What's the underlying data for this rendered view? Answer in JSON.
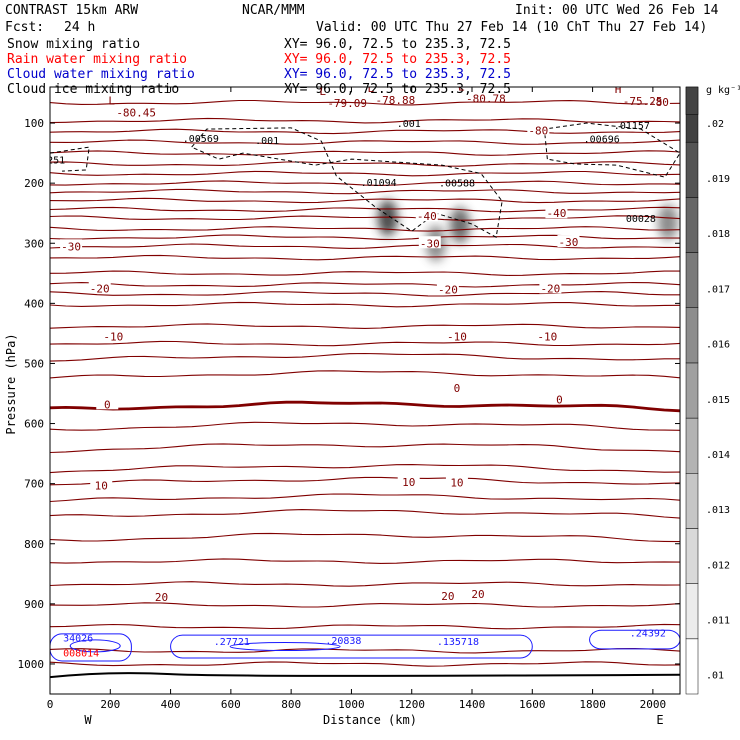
{
  "header": {
    "model": "CONTRAST 15km ARW",
    "org": "NCAR/MMM",
    "init": "Init: 00 UTC Wed 26 Feb 14",
    "fcst_label": "Fcst:",
    "fcst_value": "24 h",
    "valid": "Valid: 00 UTC Thu 27 Feb 14 (10 ChT Thu 27 Feb 14)"
  },
  "legend": [
    {
      "name": "Snow mixing ratio",
      "xy": "XY=  96.0, 72.5 to 235.3, 72.5",
      "color": "#000000"
    },
    {
      "name": "Rain water mixing ratio",
      "xy": "XY=  96.0, 72.5 to 235.3, 72.5",
      "color": "#ff0000"
    },
    {
      "name": "Cloud water mixing ratio",
      "xy": "XY=  96.0, 72.5 to 235.3, 72.5",
      "color": "#0000cc"
    },
    {
      "name": "Cloud ice mixing ratio",
      "xy": "XY=  96.0, 72.5 to 235.3, 72.5",
      "color": "#000000"
    }
  ],
  "chart_data": {
    "type": "cross-section",
    "xlabel": "Distance (km)",
    "ylabel": "Pressure (hPa)",
    "x_ticks": [
      "0",
      "200",
      "400",
      "600",
      "800",
      "1000",
      "1200",
      "1400",
      "1600",
      "1800",
      "2000"
    ],
    "x_range": [
      0,
      2090
    ],
    "y_ticks": [
      "100",
      "200",
      "300",
      "400",
      "500",
      "600",
      "700",
      "800",
      "900",
      "1000"
    ],
    "y_range": [
      40,
      1050
    ],
    "endpoints": {
      "left": "W",
      "right": "E"
    },
    "colorbar": {
      "unit": "g kg⁻¹",
      "levels": [
        ".01",
        ".011",
        ".012",
        ".013",
        ".014",
        ".015",
        ".016",
        ".017",
        ".018",
        ".019",
        ".02"
      ]
    },
    "temperature_isotherms": [
      {
        "label": "-80",
        "x": 1620,
        "p": 112
      },
      {
        "label": "-80",
        "x": 2020,
        "p": 65
      },
      {
        "label": "-40",
        "x": 1680,
        "p": 250
      },
      {
        "label": "-40",
        "x": 1250,
        "p": 255
      },
      {
        "label": "-30",
        "x": 70,
        "p": 305
      },
      {
        "label": "-30",
        "x": 1260,
        "p": 300
      },
      {
        "label": "-30",
        "x": 1720,
        "p": 298
      },
      {
        "label": "-20",
        "x": 165,
        "p": 375
      },
      {
        "label": "-20",
        "x": 1320,
        "p": 377
      },
      {
        "label": "-20",
        "x": 1660,
        "p": 375
      },
      {
        "label": "-10",
        "x": 210,
        "p": 455
      },
      {
        "label": "-10",
        "x": 1350,
        "p": 455
      },
      {
        "label": "-10",
        "x": 1650,
        "p": 455
      },
      {
        "label": "0",
        "x": 190,
        "p": 568
      },
      {
        "label": "0",
        "x": 1350,
        "p": 541
      },
      {
        "label": "0",
        "x": 1690,
        "p": 560
      },
      {
        "label": "10",
        "x": 170,
        "p": 703
      },
      {
        "label": "10",
        "x": 1190,
        "p": 697
      },
      {
        "label": "10",
        "x": 1350,
        "p": 698
      },
      {
        "label": "20",
        "x": 370,
        "p": 889
      },
      {
        "label": "20",
        "x": 1320,
        "p": 887
      },
      {
        "label": "20",
        "x": 1420,
        "p": 884
      }
    ],
    "extrema_labels": [
      {
        "kind": "L",
        "value": "-80.45",
        "x": 220,
        "p": 79
      },
      {
        "kind": "L",
        "value": "-79.09",
        "x": 920,
        "p": 63
      },
      {
        "kind": "L",
        "value": "-78.88",
        "x": 1080,
        "p": 58
      },
      {
        "kind": "L",
        "value": "-80.78",
        "x": 1380,
        "p": 56
      },
      {
        "kind": "H",
        "value": "-75.25",
        "x": 1900,
        "p": 60
      }
    ],
    "ice_maxima": [
      {
        "value": ".00569",
        "x": 520,
        "p": 125
      },
      {
        "value": ".001",
        "x": 760,
        "p": 128
      },
      {
        "value": ".001",
        "x": 1230,
        "p": 100
      },
      {
        "value": ".00696",
        "x": 1850,
        "p": 126
      },
      {
        "value": ".01157",
        "x": 1950,
        "p": 103
      },
      {
        "value": ".01094",
        "x": 1110,
        "p": 198
      },
      {
        "value": ".00588",
        "x": 1370,
        "p": 199
      },
      {
        "value": "00028",
        "x": 1990,
        "p": 258
      },
      {
        "value": "0251",
        "x": 50,
        "p": 161
      }
    ],
    "cloud_water_maxima": [
      {
        "value": "34026",
        "x": 50,
        "p": 966
      },
      {
        "value": ".27721",
        "x": 550,
        "p": 972
      },
      {
        "value": ".20838",
        "x": 920,
        "p": 970
      },
      {
        "value": ".135718",
        "x": 1290,
        "p": 972
      },
      {
        "value": ".24392",
        "x": 1930,
        "p": 958
      }
    ],
    "rain_labels": [
      {
        "value": "008014",
        "x": 50,
        "p": 981
      }
    ],
    "ice_shading": [
      {
        "x": 1120,
        "p": 258,
        "intensity": 0.95
      },
      {
        "x": 1360,
        "p": 270,
        "intensity": 0.7
      },
      {
        "x": 1280,
        "p": 300,
        "intensity": 0.45
      },
      {
        "x": 2050,
        "p": 265,
        "intensity": 0.45
      }
    ]
  }
}
